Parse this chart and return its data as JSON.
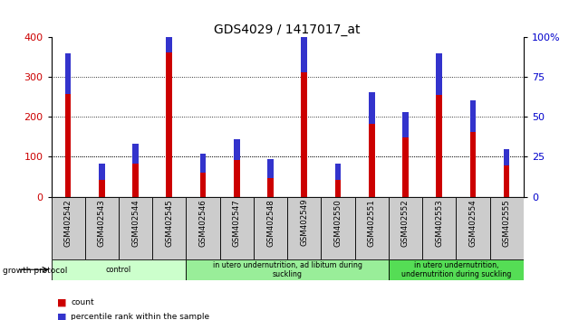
{
  "title": "GDS4029 / 1417017_at",
  "samples": [
    "GSM402542",
    "GSM402543",
    "GSM402544",
    "GSM402545",
    "GSM402546",
    "GSM402547",
    "GSM402548",
    "GSM402549",
    "GSM402550",
    "GSM402551",
    "GSM402552",
    "GSM402553",
    "GSM402554",
    "GSM402555"
  ],
  "count_values": [
    258,
    42,
    84,
    360,
    60,
    93,
    46,
    311,
    42,
    182,
    148,
    254,
    162,
    78
  ],
  "percentile_values": [
    25,
    10,
    12,
    30,
    12,
    13,
    12,
    28,
    10,
    20,
    16,
    26,
    20,
    10
  ],
  "count_color": "#cc0000",
  "percentile_color": "#3333cc",
  "bar_bg_color": "#cccccc",
  "plot_bg_color": "#ffffff",
  "ylim_left": [
    0,
    400
  ],
  "ylim_right": [
    0,
    100
  ],
  "yticks_left": [
    0,
    100,
    200,
    300,
    400
  ],
  "yticks_right": [
    0,
    25,
    50,
    75,
    100
  ],
  "groups": [
    {
      "label": "control",
      "start": 0,
      "end": 4,
      "color": "#ccffcc"
    },
    {
      "label": "in utero undernutrition, ad libitum during\nsuckling",
      "start": 4,
      "end": 10,
      "color": "#99ee99"
    },
    {
      "label": "in utero undernutrition,\nundernutrition during suckling",
      "start": 10,
      "end": 14,
      "color": "#55dd55"
    }
  ],
  "growth_protocol_label": "growth protocol",
  "legend_items": [
    {
      "label": "count",
      "color": "#cc0000"
    },
    {
      "label": "percentile rank within the sample",
      "color": "#3333cc"
    }
  ],
  "bar_width": 0.18,
  "title_fontsize": 10,
  "axis_label_color_left": "#cc0000",
  "axis_label_color_right": "#0000cc"
}
